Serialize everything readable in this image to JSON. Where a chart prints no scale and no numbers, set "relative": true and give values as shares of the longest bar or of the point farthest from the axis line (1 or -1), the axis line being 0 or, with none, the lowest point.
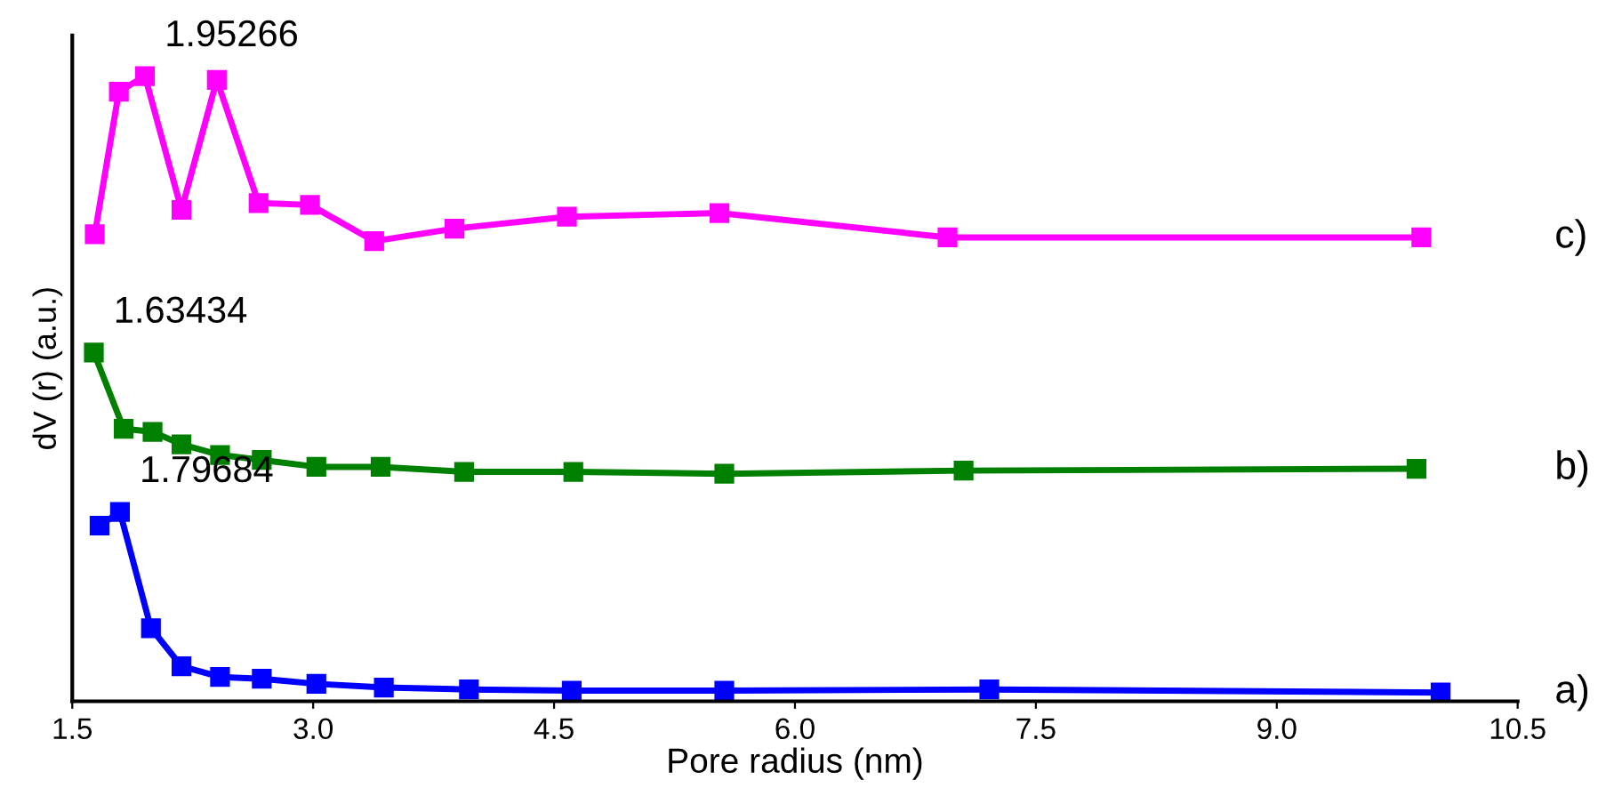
{
  "chart_data": {
    "type": "line",
    "relative": true,
    "xlabel": "Pore radius (nm)",
    "ylabel": "dV (r) (a.u.)",
    "xlim": [
      1.5,
      10.5
    ],
    "xticks": [
      {
        "value": 1.5,
        "label": "1.5"
      },
      {
        "value": 3.0,
        "label": "3.0"
      },
      {
        "value": 4.5,
        "label": "4.5"
      },
      {
        "value": 6.0,
        "label": "6.0"
      },
      {
        "value": 7.5,
        "label": "7.5"
      },
      {
        "value": 9.0,
        "label": "9.0"
      },
      {
        "value": 10.5,
        "label": "10.5"
      }
    ],
    "marker": "square",
    "line_style": "solid",
    "grid": false,
    "legend": false,
    "series": [
      {
        "name": "a)",
        "color": "#0000ff",
        "x": [
          1.67,
          1.79684,
          1.99,
          2.18,
          2.42,
          2.68,
          3.02,
          3.44,
          3.97,
          4.61,
          5.56,
          7.21,
          10.02
        ],
        "values": [
          0.281,
          0.303,
          0.117,
          0.056,
          0.039,
          0.036,
          0.028,
          0.022,
          0.019,
          0.017,
          0.017,
          0.019,
          0.014
        ]
      },
      {
        "name": "b)",
        "color": "#008000",
        "x": [
          1.63434,
          1.82,
          2.0,
          2.18,
          2.42,
          2.68,
          3.02,
          3.42,
          3.94,
          4.62,
          5.56,
          7.05,
          9.87
        ],
        "values": [
          0.558,
          0.436,
          0.431,
          0.411,
          0.394,
          0.386,
          0.375,
          0.375,
          0.367,
          0.367,
          0.364,
          0.369,
          0.372
        ]
      },
      {
        "name": "c)",
        "color": "#ff00ff",
        "x": [
          1.64,
          1.79,
          1.95266,
          2.18,
          2.4,
          2.66,
          2.98,
          3.38,
          3.88,
          4.58,
          5.53,
          6.95,
          9.9
        ],
        "values": [
          0.747,
          0.975,
          1.0,
          0.786,
          0.994,
          0.797,
          0.794,
          0.736,
          0.756,
          0.775,
          0.781,
          0.742,
          0.742
        ]
      }
    ],
    "annotations": [
      {
        "text": "1.95266",
        "x": 1.95266,
        "y": 1.0
      },
      {
        "text": "1.63434",
        "x": 1.63434,
        "y": 0.558
      },
      {
        "text": "1.79684",
        "x": 1.79684,
        "y": 0.303
      }
    ]
  }
}
